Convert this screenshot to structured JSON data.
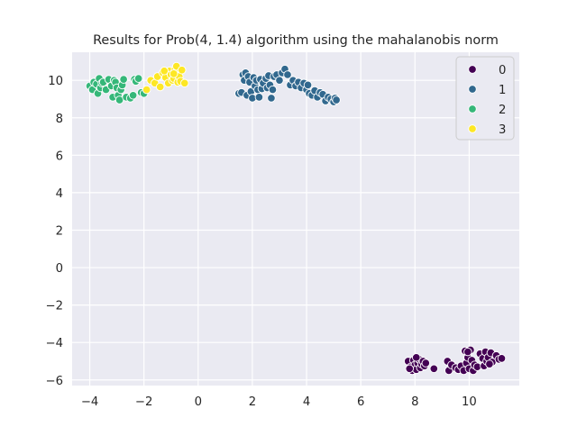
{
  "chart_data": {
    "type": "scatter",
    "title": "Results for Prob(4, 1.4) algorithm using the mahalanobis norm",
    "xlabel": "",
    "ylabel": "",
    "xlim": [
      -4.65,
      11.85
    ],
    "ylim": [
      -6.3,
      11.5
    ],
    "xticks": [
      -4,
      -2,
      0,
      2,
      4,
      6,
      8,
      10
    ],
    "yticks": [
      -6,
      -4,
      -2,
      0,
      2,
      4,
      6,
      8,
      10
    ],
    "xtick_labels": [
      "−4",
      "−2",
      "0",
      "2",
      "4",
      "6",
      "8",
      "10"
    ],
    "ytick_labels": [
      "−6",
      "−4",
      "−2",
      "0",
      "2",
      "4",
      "6",
      "8",
      "10"
    ],
    "grid": true,
    "legend_position": "top-right",
    "series": [
      {
        "name": "0",
        "color": "#440154",
        "points": [
          [
            7.75,
            -5.0
          ],
          [
            7.85,
            -5.3
          ],
          [
            7.9,
            -5.5
          ],
          [
            7.95,
            -4.95
          ],
          [
            8.0,
            -5.2
          ],
          [
            8.05,
            -5.45
          ],
          [
            8.1,
            -5.1
          ],
          [
            8.15,
            -4.9
          ],
          [
            8.2,
            -5.35
          ],
          [
            8.25,
            -5.15
          ],
          [
            8.3,
            -5.0
          ],
          [
            8.35,
            -5.25
          ],
          [
            8.05,
            -4.8
          ],
          [
            7.8,
            -5.4
          ],
          [
            8.4,
            -5.1
          ],
          [
            8.7,
            -5.4
          ],
          [
            9.2,
            -5.0
          ],
          [
            9.25,
            -5.5
          ],
          [
            9.35,
            -5.2
          ],
          [
            9.5,
            -5.35
          ],
          [
            9.6,
            -5.45
          ],
          [
            9.7,
            -5.25
          ],
          [
            9.8,
            -5.5
          ],
          [
            9.85,
            -4.45
          ],
          [
            9.9,
            -5.1
          ],
          [
            9.95,
            -4.8
          ],
          [
            10.0,
            -5.4
          ],
          [
            10.05,
            -4.4
          ],
          [
            10.1,
            -4.95
          ],
          [
            10.15,
            -5.5
          ],
          [
            10.2,
            -5.2
          ],
          [
            10.3,
            -5.3
          ],
          [
            10.4,
            -4.6
          ],
          [
            10.5,
            -4.85
          ],
          [
            10.55,
            -5.25
          ],
          [
            10.6,
            -4.5
          ],
          [
            10.65,
            -5.0
          ],
          [
            10.7,
            -4.8
          ],
          [
            10.8,
            -4.55
          ],
          [
            10.85,
            -5.05
          ],
          [
            11.0,
            -4.7
          ],
          [
            11.1,
            -4.9
          ],
          [
            11.2,
            -4.85
          ],
          [
            9.95,
            -4.5
          ],
          [
            10.75,
            -5.15
          ]
        ]
      },
      {
        "name": "1",
        "color": "#31688e",
        "points": [
          [
            1.5,
            9.3
          ],
          [
            1.6,
            9.35
          ],
          [
            1.65,
            10.3
          ],
          [
            1.7,
            10.0
          ],
          [
            1.75,
            10.4
          ],
          [
            1.8,
            9.2
          ],
          [
            1.85,
            10.2
          ],
          [
            1.9,
            9.9
          ],
          [
            1.95,
            9.4
          ],
          [
            2.0,
            9.05
          ],
          [
            2.05,
            10.15
          ],
          [
            2.1,
            9.7
          ],
          [
            2.15,
            10.0
          ],
          [
            2.2,
            9.5
          ],
          [
            2.25,
            9.1
          ],
          [
            2.3,
            10.05
          ],
          [
            2.35,
            9.55
          ],
          [
            2.4,
            9.85
          ],
          [
            2.5,
            10.1
          ],
          [
            2.55,
            9.6
          ],
          [
            2.6,
            10.25
          ],
          [
            2.65,
            9.75
          ],
          [
            2.7,
            9.05
          ],
          [
            2.75,
            9.5
          ],
          [
            2.8,
            10.2
          ],
          [
            2.9,
            10.3
          ],
          [
            3.0,
            10.0
          ],
          [
            3.1,
            10.4
          ],
          [
            3.2,
            10.6
          ],
          [
            3.3,
            10.3
          ],
          [
            3.4,
            9.75
          ],
          [
            3.5,
            10.0
          ],
          [
            3.6,
            9.7
          ],
          [
            3.7,
            9.9
          ],
          [
            3.8,
            9.6
          ],
          [
            3.9,
            9.85
          ],
          [
            4.0,
            9.5
          ],
          [
            4.05,
            9.75
          ],
          [
            4.1,
            9.3
          ],
          [
            4.2,
            9.2
          ],
          [
            4.3,
            9.45
          ],
          [
            4.4,
            9.1
          ],
          [
            4.5,
            9.35
          ],
          [
            4.6,
            9.25
          ],
          [
            4.7,
            8.9
          ],
          [
            4.8,
            9.1
          ],
          [
            4.9,
            9.0
          ],
          [
            5.0,
            8.85
          ],
          [
            5.05,
            9.05
          ],
          [
            5.1,
            8.95
          ]
        ]
      },
      {
        "name": "2",
        "color": "#35b779",
        "points": [
          [
            -4.0,
            9.7
          ],
          [
            -3.9,
            9.5
          ],
          [
            -3.85,
            9.9
          ],
          [
            -3.75,
            9.8
          ],
          [
            -3.7,
            9.3
          ],
          [
            -3.65,
            10.1
          ],
          [
            -3.6,
            9.6
          ],
          [
            -3.55,
            9.85
          ],
          [
            -3.5,
            9.9
          ],
          [
            -3.4,
            9.5
          ],
          [
            -3.3,
            10.05
          ],
          [
            -3.2,
            9.7
          ],
          [
            -3.15,
            9.1
          ],
          [
            -3.1,
            10.0
          ],
          [
            -3.05,
            9.9
          ],
          [
            -3.0,
            9.6
          ],
          [
            -2.95,
            9.2
          ],
          [
            -2.9,
            8.95
          ],
          [
            -2.85,
            9.5
          ],
          [
            -2.8,
            9.75
          ],
          [
            -2.75,
            10.05
          ],
          [
            -2.65,
            9.1
          ],
          [
            -2.5,
            9.05
          ],
          [
            -2.4,
            9.2
          ],
          [
            -2.35,
            10.05
          ],
          [
            -2.3,
            9.95
          ],
          [
            -2.2,
            10.1
          ],
          [
            -2.1,
            9.35
          ],
          [
            -2.0,
            9.3
          ]
        ]
      },
      {
        "name": "3",
        "color": "#fde725",
        "points": [
          [
            -1.9,
            9.5
          ],
          [
            -1.75,
            10.0
          ],
          [
            -1.6,
            9.85
          ],
          [
            -1.5,
            10.2
          ],
          [
            -1.4,
            9.65
          ],
          [
            -1.3,
            10.4
          ],
          [
            -1.2,
            10.15
          ],
          [
            -1.1,
            9.85
          ],
          [
            -1.05,
            10.5
          ],
          [
            -1.0,
            10.3
          ],
          [
            -0.95,
            10.0
          ],
          [
            -0.9,
            10.1
          ],
          [
            -0.85,
            10.6
          ],
          [
            -0.8,
            10.75
          ],
          [
            -0.75,
            9.9
          ],
          [
            -0.7,
            10.2
          ],
          [
            -0.65,
            9.95
          ],
          [
            -0.6,
            10.55
          ],
          [
            -0.5,
            9.85
          ],
          [
            -1.25,
            10.5
          ],
          [
            -0.9,
            10.35
          ]
        ]
      }
    ]
  }
}
